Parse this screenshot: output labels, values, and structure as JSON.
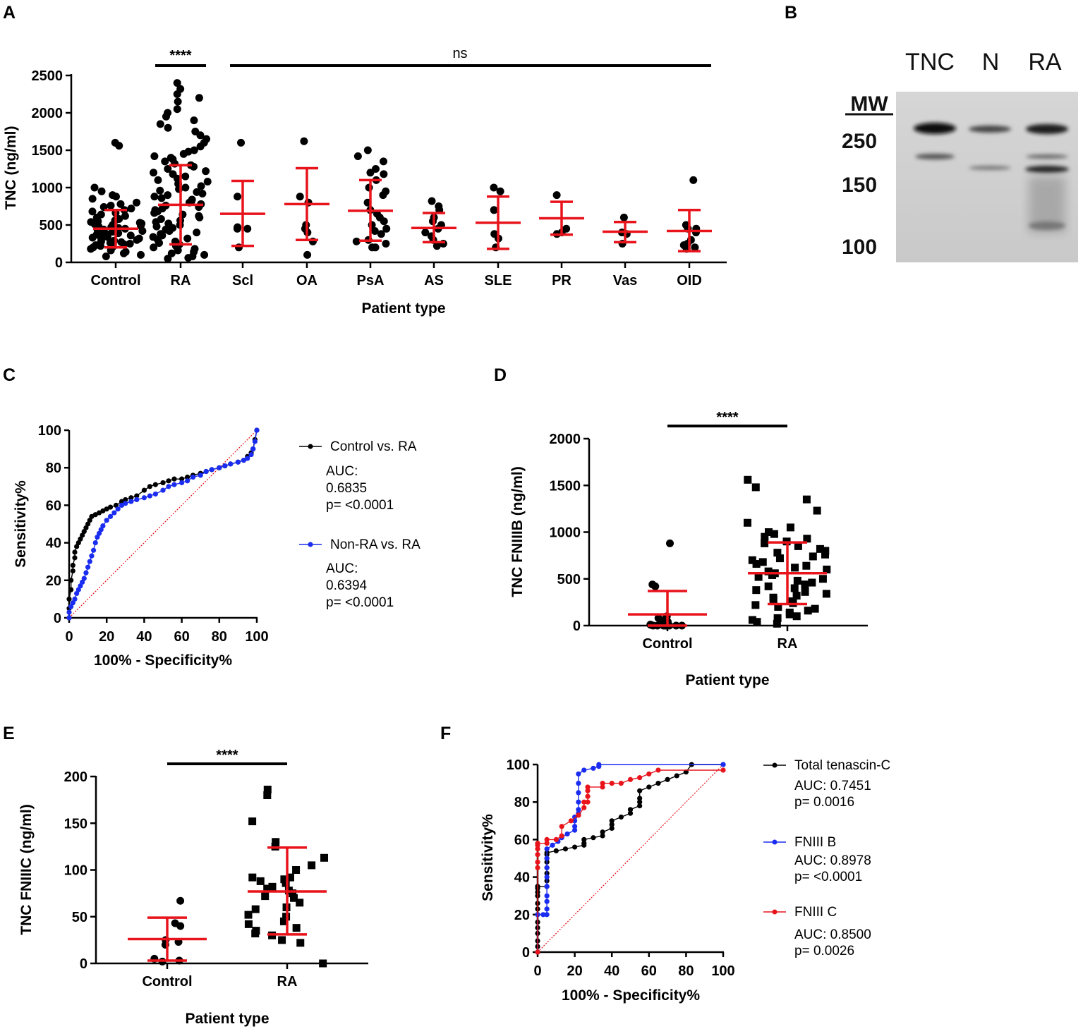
{
  "panels": {
    "A": "A",
    "B": "B",
    "C": "C",
    "D": "D",
    "E": "E",
    "F": "F"
  },
  "colors": {
    "points": "#000000",
    "errorbars": "#e8131b",
    "blue": "#1a2cf0",
    "red": "#e8131b",
    "diagonal": "#e8131b"
  },
  "chart_data": [
    {
      "id": "A",
      "type": "scatter",
      "ylabel": "TNC (ng/ml)",
      "xlabel": "Patient type",
      "ylim": [
        0,
        2500
      ],
      "yticks": [
        0,
        500,
        1000,
        1500,
        2000,
        2500
      ],
      "categories": [
        "Control",
        "RA",
        "Scl",
        "OA",
        "PsA",
        "AS",
        "SLE",
        "PR",
        "Vas",
        "OID"
      ],
      "groups": [
        {
          "name": "Control",
          "mean": 450,
          "sd_low": 200,
          "sd_high": 700,
          "points": [
            1600,
            1560,
            1000,
            950,
            900,
            880,
            850,
            800,
            780,
            760,
            740,
            720,
            700,
            680,
            660,
            640,
            620,
            600,
            580,
            560,
            550,
            540,
            530,
            520,
            510,
            500,
            490,
            480,
            470,
            460,
            450,
            440,
            430,
            420,
            410,
            400,
            390,
            380,
            370,
            360,
            350,
            340,
            330,
            320,
            310,
            300,
            290,
            280,
            270,
            260,
            250,
            240,
            230,
            220,
            210,
            200,
            180,
            160,
            140,
            120,
            100,
            80
          ]
        },
        {
          "name": "RA",
          "mean": 770,
          "sd_low": 240,
          "sd_high": 1300,
          "points": [
            2400,
            2320,
            2250,
            2200,
            2150,
            2050,
            2000,
            1950,
            1900,
            1850,
            1800,
            1750,
            1700,
            1650,
            1600,
            1550,
            1500,
            1480,
            1450,
            1420,
            1400,
            1380,
            1350,
            1320,
            1300,
            1280,
            1250,
            1220,
            1200,
            1180,
            1150,
            1120,
            1100,
            1080,
            1050,
            1020,
            1000,
            980,
            960,
            940,
            920,
            900,
            880,
            860,
            840,
            820,
            800,
            780,
            760,
            740,
            720,
            700,
            680,
            660,
            640,
            620,
            600,
            580,
            560,
            540,
            520,
            500,
            480,
            460,
            440,
            420,
            400,
            380,
            360,
            340,
            320,
            300,
            280,
            260,
            240,
            220,
            200,
            180,
            160,
            140,
            120,
            100,
            80,
            60,
            50
          ]
        },
        {
          "name": "Scl",
          "mean": 650,
          "sd_low": 220,
          "sd_high": 1090,
          "points": [
            1600,
            880,
            450,
            470,
            450,
            200
          ]
        },
        {
          "name": "OA",
          "mean": 780,
          "sd_low": 300,
          "sd_high": 1260,
          "points": [
            1620,
            880,
            800,
            500,
            450,
            400,
            280,
            100
          ]
        },
        {
          "name": "PsA",
          "mean": 690,
          "sd_low": 290,
          "sd_high": 1100,
          "points": [
            1500,
            1420,
            1350,
            1250,
            1200,
            1180,
            1100,
            1000,
            950,
            900,
            800,
            700,
            650,
            600,
            550,
            500,
            450,
            420,
            380,
            300,
            280,
            250,
            200,
            200
          ]
        },
        {
          "name": "AS",
          "mean": 460,
          "sd_low": 270,
          "sd_high": 660,
          "points": [
            820,
            750,
            700,
            600,
            550,
            500,
            450,
            400,
            350,
            300,
            250,
            220
          ]
        },
        {
          "name": "SLE",
          "mean": 530,
          "sd_low": 180,
          "sd_high": 880,
          "points": [
            1000,
            950,
            700,
            380,
            320,
            200
          ]
        },
        {
          "name": "PR",
          "mean": 590,
          "sd_low": 370,
          "sd_high": 810,
          "points": [
            900,
            450,
            400,
            380
          ]
        },
        {
          "name": "Vas",
          "mean": 410,
          "sd_low": 270,
          "sd_high": 540,
          "points": [
            600,
            400,
            380,
            250
          ]
        },
        {
          "name": "OID",
          "mean": 420,
          "sd_low": 150,
          "sd_high": 700,
          "points": [
            1100,
            500,
            450,
            300,
            250,
            200,
            230,
            180,
            450,
            400
          ]
        }
      ],
      "significance": [
        {
          "label": "****",
          "from": "RA",
          "to": "RA"
        },
        {
          "label": "ns",
          "from": "Scl",
          "to": "OID"
        }
      ]
    },
    {
      "id": "C",
      "type": "line",
      "xlabel": "100% - Specificity%",
      "ylabel": "Sensitivity%",
      "xlim": [
        0,
        100
      ],
      "ylim": [
        0,
        100
      ],
      "xticks": [
        0,
        20,
        40,
        60,
        80,
        100
      ],
      "yticks": [
        0,
        20,
        40,
        60,
        80,
        100
      ],
      "series": [
        {
          "name": "Control vs. RA",
          "color": "#000000",
          "auc": "AUC:",
          "auc_value": "0.6835",
          "p": "p= <0.0001",
          "x": [
            0,
            0,
            0,
            1,
            1,
            2,
            2,
            3,
            3,
            4,
            5,
            6,
            7,
            8,
            9,
            10,
            11,
            12,
            14,
            16,
            18,
            20,
            22,
            25,
            28,
            30,
            33,
            36,
            40,
            43,
            46,
            50,
            53,
            56,
            60,
            63,
            66,
            70,
            73,
            76,
            80,
            83,
            86,
            90,
            93,
            95,
            97,
            98,
            99,
            100
          ],
          "y": [
            0,
            5,
            10,
            15,
            20,
            25,
            28,
            32,
            35,
            38,
            40,
            42,
            44,
            46,
            48,
            50,
            52,
            54,
            55,
            56,
            57,
            58,
            59,
            60,
            62,
            63,
            64,
            65,
            68,
            70,
            71,
            72,
            73,
            74,
            74,
            75,
            76,
            77,
            78,
            79,
            80,
            81,
            82,
            83,
            84,
            86,
            88,
            90,
            95,
            100
          ]
        },
        {
          "name": "Non-RA vs. RA",
          "color": "#1a2cf0",
          "auc": "AUC:",
          "auc_value": "0.6394",
          "p": "p= <0.0001",
          "x": [
            0,
            0,
            1,
            2,
            3,
            4,
            5,
            6,
            7,
            8,
            9,
            10,
            11,
            12,
            13,
            14,
            15,
            16,
            17,
            18,
            20,
            22,
            24,
            26,
            28,
            30,
            33,
            36,
            40,
            43,
            46,
            50,
            53,
            56,
            60,
            63,
            66,
            70,
            73,
            76,
            80,
            83,
            86,
            90,
            93,
            95,
            97,
            98,
            99,
            100
          ],
          "y": [
            0,
            3,
            6,
            8,
            10,
            13,
            15,
            17,
            19,
            21,
            24,
            27,
            30,
            33,
            36,
            40,
            43,
            45,
            47,
            49,
            52,
            54,
            56,
            58,
            60,
            61,
            62,
            63,
            64,
            65,
            66,
            68,
            70,
            71,
            72,
            73,
            75,
            76,
            78,
            79,
            80,
            81,
            82,
            83,
            84,
            85,
            87,
            90,
            94,
            100
          ]
        }
      ],
      "diagonal": true
    },
    {
      "id": "D",
      "type": "scatter",
      "ylabel": "TNC FNIIIB (ng/ml)",
      "xlabel": "Patient type",
      "ylim": [
        0,
        2000
      ],
      "yticks": [
        0,
        500,
        1000,
        1500,
        2000
      ],
      "categories": [
        "Control",
        "RA"
      ],
      "groups": [
        {
          "name": "Control",
          "marker": "circle",
          "mean": 120,
          "sd_low": 0,
          "sd_high": 370,
          "points": [
            880,
            440,
            420,
            100,
            80,
            60,
            40,
            20,
            10,
            5,
            0,
            0,
            0,
            0,
            0,
            0,
            0,
            0
          ]
        },
        {
          "name": "RA",
          "marker": "square",
          "mean": 560,
          "sd_low": 230,
          "sd_high": 890,
          "points": [
            1560,
            1480,
            1350,
            1230,
            1100,
            1050,
            1000,
            980,
            950,
            930,
            900,
            880,
            850,
            820,
            800,
            780,
            760,
            740,
            720,
            700,
            680,
            660,
            640,
            620,
            600,
            580,
            560,
            540,
            520,
            500,
            480,
            460,
            440,
            420,
            400,
            380,
            360,
            340,
            320,
            300,
            280,
            260,
            240,
            220,
            200,
            180,
            160,
            140,
            120,
            100,
            80,
            60,
            40,
            20
          ]
        }
      ],
      "significance": [
        {
          "label": "****",
          "from": "Control",
          "to": "RA"
        }
      ]
    },
    {
      "id": "E",
      "type": "scatter",
      "ylabel": "TNC FNIIIC (ng/ml)",
      "xlabel": "Patient type",
      "ylim": [
        0,
        200
      ],
      "yticks": [
        0,
        50,
        100,
        150,
        200
      ],
      "categories": [
        "Control",
        "RA"
      ],
      "groups": [
        {
          "name": "Control",
          "marker": "circle",
          "mean": 26,
          "sd_low": 3,
          "sd_high": 49,
          "points": [
            67,
            43,
            40,
            25,
            23,
            20,
            5,
            3,
            2
          ]
        },
        {
          "name": "RA",
          "marker": "square",
          "mean": 77,
          "sd_low": 31,
          "sd_high": 124,
          "points": [
            186,
            180,
            152,
            130,
            125,
            113,
            105,
            100,
            92,
            92,
            90,
            88,
            86,
            82,
            80,
            78,
            75,
            72,
            70,
            65,
            60,
            58,
            52,
            50,
            45,
            42,
            38,
            35,
            32,
            30,
            25,
            22,
            0
          ]
        }
      ],
      "significance": [
        {
          "label": "****",
          "from": "Control",
          "to": "RA"
        }
      ]
    },
    {
      "id": "F",
      "type": "line",
      "xlabel": "100% - Specificity%",
      "ylabel": "Sensitivity%",
      "xlim": [
        0,
        100
      ],
      "ylim": [
        0,
        100
      ],
      "xticks": [
        0,
        20,
        40,
        60,
        80,
        100
      ],
      "yticks": [
        0,
        20,
        40,
        60,
        80,
        100
      ],
      "series": [
        {
          "name": "Total tenascin-C",
          "color": "#000000",
          "auc": "AUC: 0.7451",
          "p": "p= 0.0016",
          "x": [
            0,
            0,
            0,
            0,
            0,
            0,
            0,
            0,
            0,
            0,
            0,
            0,
            0,
            0,
            5,
            5,
            5,
            5,
            5,
            5,
            5,
            5,
            10,
            15,
            20,
            25,
            25,
            25,
            30,
            35,
            35,
            40,
            40,
            40,
            45,
            50,
            50,
            55,
            55,
            55,
            55,
            60,
            65,
            70,
            75,
            80,
            83,
            100
          ],
          "y": [
            0,
            3,
            6,
            10,
            13,
            16,
            20,
            23,
            26,
            30,
            32,
            34,
            35,
            35,
            35,
            38,
            42,
            45,
            48,
            50,
            52,
            53,
            54,
            55,
            56,
            57,
            58,
            60,
            61,
            62,
            64,
            66,
            68,
            70,
            72,
            74,
            76,
            78,
            80,
            82,
            86,
            88,
            90,
            92,
            94,
            96,
            100,
            100
          ]
        },
        {
          "name": "FNIII B",
          "color": "#1a2cf0",
          "auc": "AUC: 0.8978",
          "p": "p= <0.0001",
          "x": [
            0,
            0,
            3,
            5,
            5,
            5,
            5,
            5,
            5,
            5,
            5,
            5,
            8,
            11,
            13,
            16,
            20,
            20,
            20,
            20,
            22,
            22,
            22,
            22,
            22,
            22,
            25,
            30,
            33,
            33,
            100
          ],
          "y": [
            0,
            20,
            20,
            20,
            23,
            27,
            30,
            35,
            40,
            45,
            50,
            55,
            57,
            59,
            61,
            63,
            65,
            67,
            70,
            72,
            74,
            76,
            80,
            85,
            90,
            95,
            97,
            98,
            99,
            100,
            100
          ]
        },
        {
          "name": "FNIII C",
          "color": "#e8131b",
          "auc": "AUC: 0.8500",
          "p": "p= 0.0026",
          "x": [
            0,
            0,
            0,
            0,
            0,
            0,
            0,
            5,
            5,
            10,
            13,
            13,
            18,
            22,
            22,
            25,
            25,
            27,
            27,
            27,
            27,
            35,
            35,
            40,
            45,
            50,
            55,
            60,
            65,
            100
          ],
          "y": [
            0,
            45,
            48,
            52,
            55,
            57,
            58,
            58,
            60,
            60,
            62,
            67,
            70,
            73,
            73,
            77,
            80,
            80,
            83,
            86,
            88,
            88,
            90,
            90,
            90,
            92,
            93,
            95,
            97,
            97
          ]
        }
      ],
      "diagonal": true
    }
  ],
  "blot": {
    "lanes": [
      "TNC",
      "N",
      "RA"
    ],
    "mw_title": "MW",
    "mw_markers": [
      "250",
      "150",
      "100"
    ]
  }
}
